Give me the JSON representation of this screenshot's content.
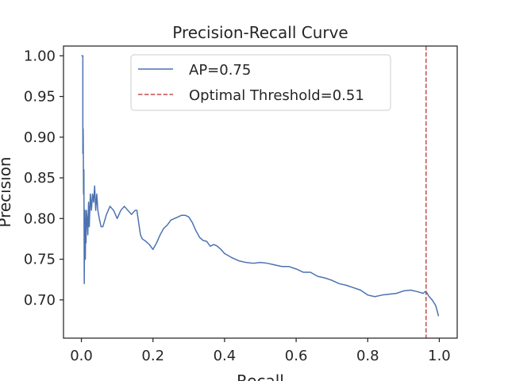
{
  "chart_data": {
    "type": "line",
    "title": "Precision-Recall Curve",
    "xlabel": "Recall",
    "ylabel": "Precision",
    "xlim": [
      -0.05,
      1.05
    ],
    "ylim": [
      0.653,
      1.012
    ],
    "xticks": [
      0.0,
      0.2,
      0.4,
      0.6,
      0.8,
      1.0
    ],
    "xtick_labels": [
      "0.0",
      "0.2",
      "0.4",
      "0.6",
      "0.8",
      "1.0"
    ],
    "yticks": [
      0.7,
      0.75,
      0.8,
      0.85,
      0.9,
      0.95,
      1.0
    ],
    "ytick_labels": [
      "0.70",
      "0.75",
      "0.80",
      "0.85",
      "0.90",
      "0.95",
      "1.00"
    ],
    "grid": false,
    "legend_position": "upper center",
    "series": [
      {
        "name": "AP=0.75",
        "kind": "line",
        "color": "#4c72b0",
        "x": [
          0.0,
          0.004,
          0.004,
          0.005,
          0.006,
          0.007,
          0.008,
          0.009,
          0.01,
          0.011,
          0.012,
          0.013,
          0.014,
          0.016,
          0.018,
          0.02,
          0.022,
          0.025,
          0.028,
          0.031,
          0.034,
          0.037,
          0.04,
          0.043,
          0.046,
          0.05,
          0.055,
          0.06,
          0.07,
          0.08,
          0.09,
          0.1,
          0.11,
          0.12,
          0.13,
          0.14,
          0.15,
          0.155,
          0.16,
          0.165,
          0.17,
          0.18,
          0.19,
          0.2,
          0.21,
          0.22,
          0.23,
          0.24,
          0.25,
          0.26,
          0.27,
          0.28,
          0.29,
          0.3,
          0.31,
          0.32,
          0.33,
          0.34,
          0.35,
          0.36,
          0.37,
          0.38,
          0.39,
          0.4,
          0.42,
          0.44,
          0.46,
          0.48,
          0.5,
          0.52,
          0.54,
          0.56,
          0.58,
          0.6,
          0.62,
          0.64,
          0.66,
          0.68,
          0.7,
          0.72,
          0.74,
          0.76,
          0.78,
          0.8,
          0.82,
          0.84,
          0.86,
          0.88,
          0.9,
          0.92,
          0.94,
          0.955,
          0.96,
          0.965,
          0.97,
          0.98,
          0.99,
          0.998
        ],
        "y": [
          1.0,
          1.0,
          0.88,
          0.91,
          0.83,
          0.86,
          0.72,
          0.79,
          0.81,
          0.75,
          0.8,
          0.77,
          0.81,
          0.8,
          0.78,
          0.82,
          0.79,
          0.83,
          0.81,
          0.83,
          0.82,
          0.84,
          0.81,
          0.83,
          0.81,
          0.8,
          0.79,
          0.79,
          0.805,
          0.815,
          0.81,
          0.8,
          0.81,
          0.815,
          0.81,
          0.805,
          0.81,
          0.81,
          0.795,
          0.78,
          0.775,
          0.772,
          0.768,
          0.762,
          0.77,
          0.78,
          0.788,
          0.792,
          0.798,
          0.8,
          0.802,
          0.804,
          0.804,
          0.802,
          0.795,
          0.785,
          0.777,
          0.773,
          0.772,
          0.766,
          0.768,
          0.766,
          0.762,
          0.757,
          0.752,
          0.748,
          0.746,
          0.745,
          0.746,
          0.745,
          0.743,
          0.741,
          0.741,
          0.738,
          0.734,
          0.734,
          0.729,
          0.727,
          0.724,
          0.72,
          0.718,
          0.715,
          0.712,
          0.706,
          0.704,
          0.706,
          0.707,
          0.708,
          0.711,
          0.712,
          0.71,
          0.708,
          0.71,
          0.709,
          0.705,
          0.7,
          0.693,
          0.68
        ]
      },
      {
        "name": "Optimal Threshold=0.51",
        "kind": "vline",
        "color": "#c44e52",
        "x": 0.963
      }
    ]
  }
}
